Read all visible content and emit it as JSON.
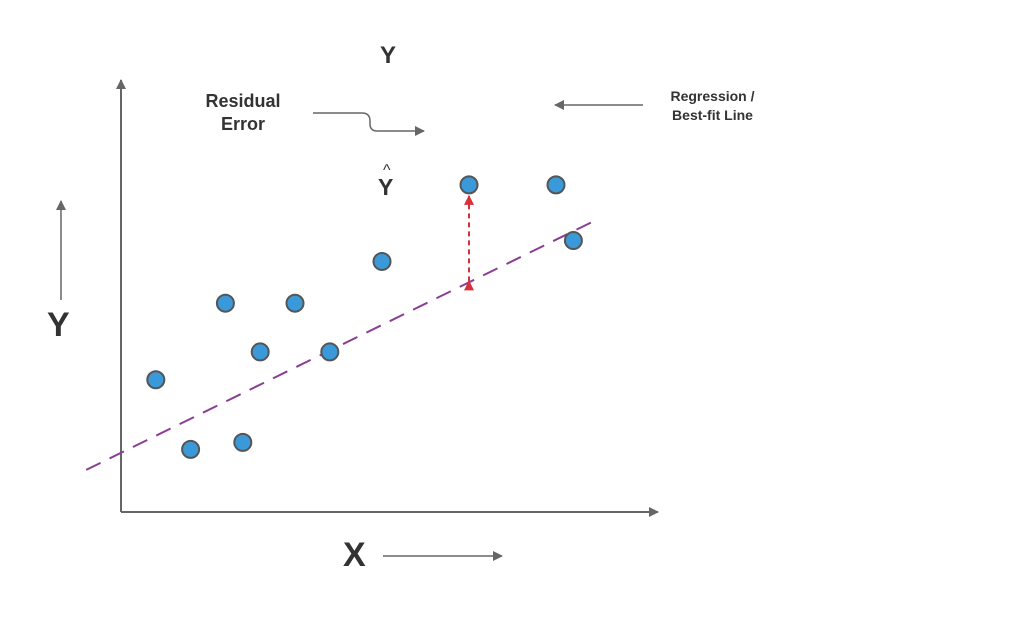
{
  "labels": {
    "actual_y": "Y",
    "predicted_y": "Y",
    "hat": "^",
    "residual_line1": "Residual",
    "residual_line2": "Error",
    "regression_line1": "Regression /",
    "regression_line2": "Best-fit Line",
    "y_axis": "Y",
    "x_axis": "X"
  },
  "colors": {
    "axis": "#666666",
    "text": "#333333",
    "point_fill": "#3a9ad9",
    "point_stroke": "#555555",
    "regression_line": "#8a3e93",
    "residual_line": "#d8303b"
  },
  "chart_data": {
    "type": "scatter",
    "points": [
      {
        "x": 1.0,
        "y": 3.8
      },
      {
        "x": 2.0,
        "y": 1.8
      },
      {
        "x": 3.0,
        "y": 6.0
      },
      {
        "x": 3.5,
        "y": 2.0
      },
      {
        "x": 4.0,
        "y": 4.6
      },
      {
        "x": 5.0,
        "y": 6.0
      },
      {
        "x": 6.0,
        "y": 4.6
      },
      {
        "x": 7.5,
        "y": 7.2
      },
      {
        "x": 10.0,
        "y": 9.4
      },
      {
        "x": 12.5,
        "y": 9.4
      },
      {
        "x": 13.0,
        "y": 7.8
      }
    ],
    "regression_line": {
      "intercept": 1.7,
      "slope": 0.49,
      "style": "dashed"
    },
    "residual_x": 10.0,
    "xlim": [
      -1,
      15.5
    ],
    "ylim": [
      -1,
      11.4
    ],
    "ticks": false,
    "grid": false
  }
}
